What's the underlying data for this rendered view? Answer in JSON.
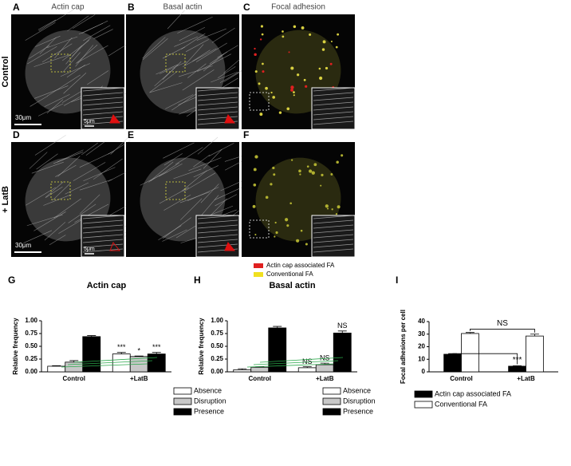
{
  "panels": [
    {
      "letter": "A",
      "title": "Actin cap"
    },
    {
      "letter": "B",
      "title": "Basal actin"
    },
    {
      "letter": "C",
      "title": "Focal adhesion"
    },
    {
      "letter": "D"
    },
    {
      "letter": "E"
    },
    {
      "letter": "F"
    }
  ],
  "row_labels": [
    "Control",
    "+ LatB"
  ],
  "scale_bars": [
    "30μm",
    "5μm",
    "30μm",
    "5μm"
  ],
  "image_legend": [
    "Actin cap associated FA",
    "Conventional FA"
  ],
  "chart_data": [
    {
      "panel": "G",
      "type": "bar",
      "title": "Actin cap",
      "y_label": "Relative frequency",
      "categories": [
        "Control",
        "+LatB"
      ],
      "ylim": [
        0,
        1
      ],
      "yticks": [
        {
          "value": 0,
          "label": "0.00"
        },
        {
          "value": 0.25,
          "label": "0.25"
        },
        {
          "value": 0.5,
          "label": "0.50"
        },
        {
          "value": 0.75,
          "label": "0.75"
        },
        {
          "value": 1,
          "label": "1.00"
        }
      ],
      "series": [
        {
          "name": "Absence",
          "color": "#ffffff",
          "values": [
            0.11,
            0.35
          ],
          "errors": [
            0.01,
            0.03
          ]
        },
        {
          "name": "Disruption",
          "color": "#c8c8c8",
          "values": [
            0.19,
            0.3
          ],
          "errors": [
            0.03,
            0.01
          ]
        },
        {
          "name": "Presence",
          "color": "#000000",
          "values": [
            0.69,
            0.35
          ],
          "errors": [
            0.02,
            0.03
          ]
        }
      ],
      "annotations": [
        "***",
        "*",
        "***"
      ]
    },
    {
      "panel": "H",
      "type": "bar",
      "title": "Basal actin",
      "y_label": "Relative frequency",
      "categories": [
        "Control",
        "+LatB"
      ],
      "ylim": [
        0,
        1
      ],
      "yticks": [
        {
          "value": 0,
          "label": "0.00"
        },
        {
          "value": 0.25,
          "label": "0.25"
        },
        {
          "value": 0.5,
          "label": "0.50"
        },
        {
          "value": 0.75,
          "label": "0.75"
        },
        {
          "value": 1,
          "label": "1.00"
        }
      ],
      "series": [
        {
          "name": "Absence",
          "color": "#ffffff",
          "values": [
            0.04,
            0.08
          ],
          "errors": [
            0.02,
            0.02
          ]
        },
        {
          "name": "Disruption",
          "color": "#c8c8c8",
          "values": [
            0.09,
            0.14
          ],
          "errors": [
            0.01,
            0.03
          ]
        },
        {
          "name": "Presence",
          "color": "#000000",
          "values": [
            0.86,
            0.76
          ],
          "errors": [
            0.03,
            0.04
          ]
        }
      ],
      "annotations": [
        "NS",
        "NS",
        "NS"
      ]
    },
    {
      "panel": "I",
      "type": "bar",
      "y_label": "Focal adhesions per cell",
      "categories": [
        "Control",
        "+LatB"
      ],
      "ylim": [
        0,
        40
      ],
      "yticks": [
        0,
        10,
        20,
        30,
        40
      ],
      "series": [
        {
          "name": "Actin cap associated FA",
          "color": "#000000",
          "values": [
            14,
            4.5
          ],
          "errors": [
            0.5,
            0.3
          ]
        },
        {
          "name": "Conventional FA",
          "color": "#ffffff",
          "values": [
            30.5,
            28.5
          ],
          "errors": [
            0.8,
            1.5
          ]
        }
      ],
      "annotations": [
        "***",
        "NS"
      ]
    }
  ]
}
